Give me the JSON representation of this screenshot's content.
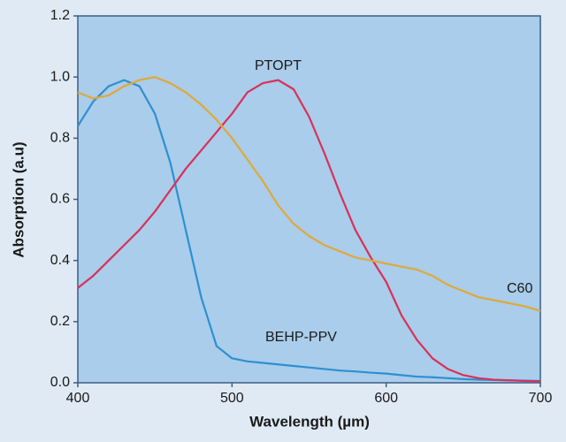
{
  "chart_data": {
    "type": "line",
    "x_label": "Wavelength (µm)",
    "y_label": "Absorption (a.u)",
    "x": [
      400,
      410,
      420,
      430,
      440,
      450,
      460,
      470,
      480,
      490,
      500,
      510,
      520,
      530,
      540,
      550,
      560,
      570,
      580,
      590,
      600,
      610,
      620,
      630,
      640,
      650,
      660,
      670,
      680,
      690,
      700
    ],
    "series": [
      {
        "name": "BEHP-PPV",
        "color": "#2f8fd2",
        "values": [
          0.84,
          0.92,
          0.97,
          0.99,
          0.97,
          0.88,
          0.72,
          0.5,
          0.28,
          0.12,
          0.08,
          0.07,
          0.065,
          0.06,
          0.055,
          0.05,
          0.045,
          0.04,
          0.037,
          0.033,
          0.03,
          0.025,
          0.02,
          0.018,
          0.015,
          0.012,
          0.01,
          0.009,
          0.008,
          0.007,
          0.006
        ]
      },
      {
        "name": "PTOPT",
        "color": "#d9305a",
        "values": [
          0.31,
          0.35,
          0.4,
          0.45,
          0.5,
          0.56,
          0.63,
          0.7,
          0.76,
          0.82,
          0.88,
          0.95,
          0.98,
          0.99,
          0.96,
          0.87,
          0.75,
          0.62,
          0.5,
          0.41,
          0.33,
          0.22,
          0.14,
          0.08,
          0.045,
          0.025,
          0.015,
          0.01,
          0.008,
          0.006,
          0.005
        ]
      },
      {
        "name": "C60",
        "color": "#e0a83a",
        "values": [
          0.95,
          0.93,
          0.94,
          0.97,
          0.99,
          1.0,
          0.98,
          0.95,
          0.91,
          0.86,
          0.8,
          0.73,
          0.66,
          0.58,
          0.52,
          0.48,
          0.45,
          0.43,
          0.41,
          0.4,
          0.39,
          0.38,
          0.37,
          0.35,
          0.32,
          0.3,
          0.28,
          0.27,
          0.26,
          0.25,
          0.235
        ]
      }
    ],
    "xlim": [
      400,
      700
    ],
    "xticks": [
      400,
      500,
      600,
      700
    ],
    "ylim": [
      0,
      1.2
    ],
    "yticks": [
      {
        "value": 0,
        "label": "0.0"
      },
      0.2,
      0.4,
      0.6,
      0.8,
      {
        "value": 1,
        "label": "1.0"
      },
      1.2
    ],
    "grid": false
  }
}
